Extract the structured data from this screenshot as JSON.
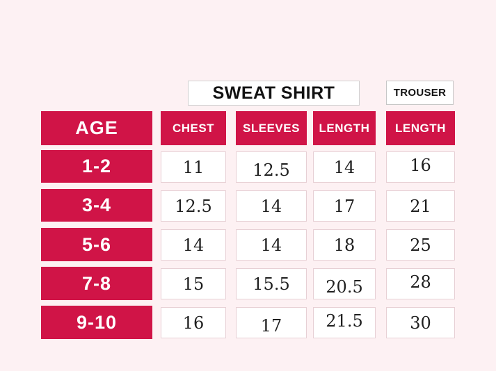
{
  "colors": {
    "background": "#fdf1f3",
    "accent": "#d01447",
    "cell_background": "#ffffff",
    "cell_border": "#e7d0d5",
    "title_box_border": "#d0d0d0",
    "header_text": "#ffffff",
    "value_text": "#1f1f1f",
    "title_text": "#121212"
  },
  "titles": {
    "sweatshirt": "SWEAT SHIRT",
    "trouser": "TROUSER"
  },
  "table": {
    "columns": [
      "AGE",
      "CHEST",
      "SLEEVES",
      "LENGTH",
      "LENGTH"
    ],
    "rows": [
      {
        "age": "1-2",
        "chest": "11",
        "sleeves": "12.5",
        "length": "14",
        "trouser": "16"
      },
      {
        "age": "3-4",
        "chest": "12.5",
        "sleeves": "14",
        "length": "17",
        "trouser": "21"
      },
      {
        "age": "5-6",
        "chest": "14",
        "sleeves": "14",
        "length": "18",
        "trouser": "25"
      },
      {
        "age": "7-8",
        "chest": "15",
        "sleeves": "15.5",
        "length": "20.5",
        "trouser": "28"
      },
      {
        "age": "9-10",
        "chest": "16",
        "sleeves": "17",
        "length": "21.5",
        "trouser": "30"
      }
    ]
  },
  "chart_data": {
    "type": "table",
    "title": "SWEAT SHIRT",
    "secondary_title": "TROUSER",
    "row_header": "AGE",
    "categories": [
      "1-2",
      "3-4",
      "5-6",
      "7-8",
      "9-10"
    ],
    "column_groups": [
      {
        "group": "SWEAT SHIRT",
        "columns": [
          "CHEST",
          "SLEEVES",
          "LENGTH"
        ]
      },
      {
        "group": "TROUSER",
        "columns": [
          "LENGTH"
        ]
      }
    ],
    "series": [
      {
        "name": "CHEST",
        "group": "SWEAT SHIRT",
        "values": [
          11,
          12.5,
          14,
          15,
          16
        ]
      },
      {
        "name": "SLEEVES",
        "group": "SWEAT SHIRT",
        "values": [
          12.5,
          14,
          14,
          15.5,
          17
        ]
      },
      {
        "name": "LENGTH",
        "group": "SWEAT SHIRT",
        "values": [
          14,
          17,
          18,
          20.5,
          21.5
        ]
      },
      {
        "name": "LENGTH",
        "group": "TROUSER",
        "values": [
          16,
          21,
          25,
          28,
          30
        ]
      }
    ]
  }
}
